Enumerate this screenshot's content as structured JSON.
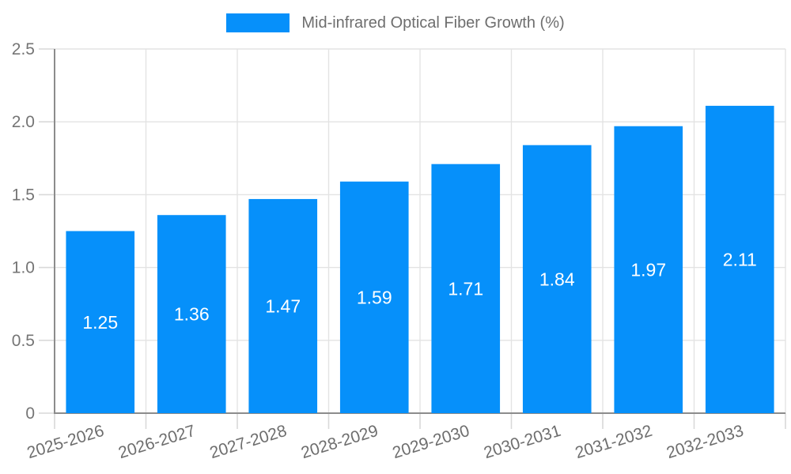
{
  "legend": {
    "label": "Mid-infrared Optical Fiber Growth (%)"
  },
  "chart_data": {
    "type": "bar",
    "title": "",
    "xlabel": "",
    "ylabel": "",
    "categories": [
      "2025-2026",
      "2026-2027",
      "2027-2028",
      "2028-2029",
      "2029-2030",
      "2030-2031",
      "2031-2032",
      "2032-2033"
    ],
    "values": [
      1.25,
      1.36,
      1.47,
      1.59,
      1.71,
      1.84,
      1.97,
      2.11
    ],
    "value_labels": [
      "1.25",
      "1.36",
      "1.47",
      "1.59",
      "1.71",
      "1.84",
      "1.97",
      "2.11"
    ],
    "series": [
      {
        "name": "Mid-infrared Optical Fiber Growth (%)",
        "values": [
          1.25,
          1.36,
          1.47,
          1.59,
          1.71,
          1.84,
          1.97,
          2.11
        ]
      }
    ],
    "ylim": [
      0,
      2.5
    ],
    "yticks": [
      0,
      0.5,
      1.0,
      1.5,
      2.0,
      2.5
    ],
    "ytick_labels": [
      "0",
      "0.5",
      "1.0",
      "1.5",
      "2.0",
      "2.5"
    ],
    "grid": true,
    "legend_position": "top",
    "xtick_rotation_deg": -17,
    "colors": {
      "bar": "#0690FA",
      "axis": "#8C8C8C",
      "gridline": "#E3E3E3",
      "tick": "#D9D9D9",
      "axis_text": "#757575",
      "xtick_text": "#6E6E6E",
      "value_text": "#FFFFFF",
      "legend_text": "#6E6E6E",
      "background": "#FFFFFF"
    }
  }
}
